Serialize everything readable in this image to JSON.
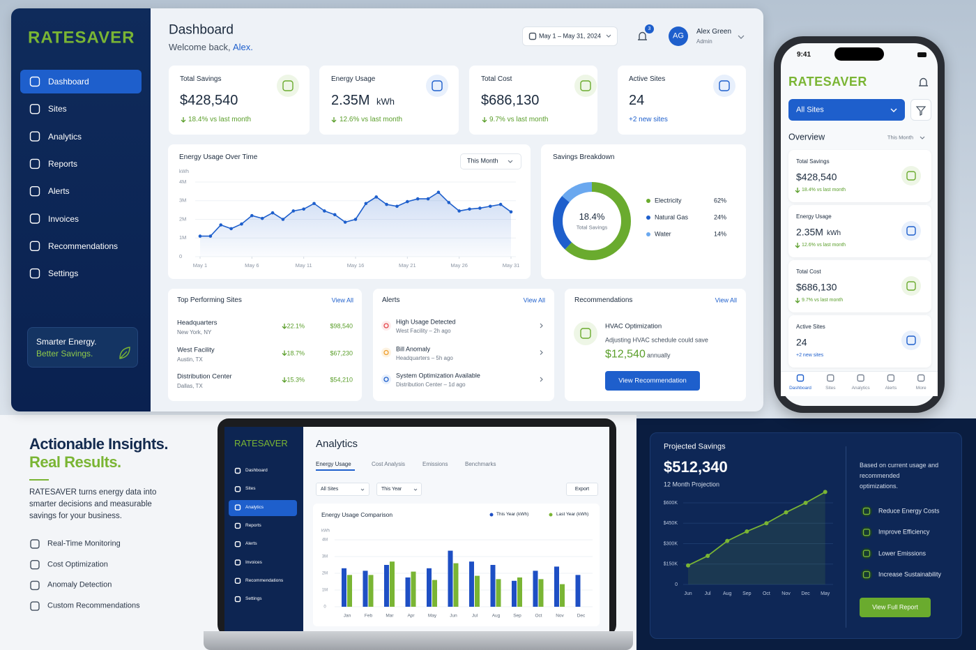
{
  "sidebar": {
    "logo": "RATESAVER",
    "nav": [
      "Dashboard",
      "Sites",
      "Analytics",
      "Reports",
      "Alerts",
      "Invoices",
      "Recommendations",
      "Settings"
    ],
    "tagline": [
      "Smarter Energy.",
      "Better Savings."
    ]
  },
  "header": {
    "title": "Dashboard",
    "welcome": "Welcome back,",
    "user_short": "Alex.",
    "date_range": "May 1 – May 31, 2024",
    "notification_count": "3",
    "avatar": "AG",
    "user_name": "Alex Green",
    "role": "Admin"
  },
  "kpis": [
    {
      "label": "Total Savings",
      "value": "$428,540",
      "change": "18.4% vs last month"
    },
    {
      "label": "Energy Usage",
      "value": "2.35M",
      "unit": "kWh",
      "change": "12.6% vs last month"
    },
    {
      "label": "Total Cost",
      "value": "$686,130",
      "change": "9.7% vs last month"
    },
    {
      "label": "Active Sites",
      "value": "24",
      "change": "+2 new sites"
    }
  ],
  "usage_chart": {
    "type": "line",
    "title": "Energy Usage Over Time",
    "period": "This Month",
    "ylabel": "kWh",
    "color": "#1e5fcc",
    "grid": true,
    "x": [
      1,
      2,
      3,
      4,
      5,
      6,
      7,
      8,
      9,
      10,
      11,
      12,
      13,
      14,
      15,
      16,
      17,
      18,
      19,
      20,
      21,
      22,
      23,
      24,
      25,
      26,
      27,
      28,
      29,
      30,
      31
    ],
    "y": [
      1100000,
      1100000,
      1700000,
      1500000,
      1750000,
      2200000,
      2050000,
      2350000,
      2000000,
      2450000,
      2550000,
      2850000,
      2450000,
      2250000,
      1850000,
      2000000,
      2850000,
      3200000,
      2800000,
      2700000,
      2950000,
      3100000,
      3100000,
      3450000,
      2900000,
      2450000,
      2550000,
      2600000,
      2700000,
      2800000,
      2400000
    ],
    "xlim": [
      1,
      31
    ],
    "xticks": [
      {
        "value": 1,
        "label": "May 1"
      },
      {
        "value": 6,
        "label": "May 6"
      },
      {
        "value": 11,
        "label": "May 11"
      },
      {
        "value": 16,
        "label": "May 16"
      },
      {
        "value": 21,
        "label": "May 21"
      },
      {
        "value": 26,
        "label": "May 26"
      },
      {
        "value": 31,
        "label": "May 31"
      }
    ],
    "ylim": [
      0,
      4000000
    ],
    "yticks": [
      0,
      {
        "value": 1000000,
        "label": "1M"
      },
      {
        "value": 2000000,
        "label": "2M"
      },
      {
        "value": 3000000,
        "label": "3M"
      },
      {
        "value": 4000000,
        "label": "4M"
      }
    ]
  },
  "savings_breakdown": {
    "type": "pie",
    "title": "Savings Breakdown",
    "center_value": "18.4%",
    "center_label": "Total Savings",
    "categories": [
      "Electricity",
      "Natural Gas",
      "Water"
    ],
    "values": [
      62,
      24,
      14
    ],
    "value_labels": [
      "62%",
      "24%",
      "14%"
    ],
    "colors": [
      "#6aab2e",
      "#1e5fcc",
      "#6aa8ef"
    ]
  },
  "top_sites": {
    "title": "Top Performing Sites",
    "link": "View All",
    "rows": [
      {
        "name": "Headquarters",
        "location": "New York, NY",
        "change": "22.1%",
        "amount": "$98,540"
      },
      {
        "name": "West Facility",
        "location": "Austin, TX",
        "change": "18.7%",
        "amount": "$67,230"
      },
      {
        "name": "Distribution Center",
        "location": "Dallas, TX",
        "change": "15.3%",
        "amount": "$54,210"
      }
    ]
  },
  "alerts": {
    "title": "Alerts",
    "link": "View All",
    "items": [
      {
        "title": "High Usage Detected",
        "detail": "West Facility – 2h ago"
      },
      {
        "title": "Bill Anomaly",
        "detail": "Headquarters – 5h ago"
      },
      {
        "title": "System Optimization Available",
        "detail": "Distribution Center – 1d ago"
      }
    ]
  },
  "recommendations": {
    "title": "Recommendations",
    "link": "View All",
    "item_title": "HVAC Optimization",
    "description": "Adjusting HVAC schedule could save",
    "amount": "$12,540",
    "period": "annually",
    "button": "View Recommendation"
  },
  "phone": {
    "time": "9:41",
    "filter": "All Sites",
    "section": "Overview",
    "period": "This Month",
    "tabs": [
      "Dashboard",
      "Sites",
      "Analytics",
      "Alerts",
      "More"
    ]
  },
  "marketing": {
    "headline": "Actionable Insights.",
    "subheadline": "Real Results.",
    "body": "RATESAVER turns energy data into smarter decisions and measurable savings for your business.",
    "features": [
      "Real-Time Monitoring",
      "Cost Optimization",
      "Anomaly Detection",
      "Custom Recommendations"
    ]
  },
  "laptop": {
    "title": "Analytics",
    "tabs": [
      "Energy Usage",
      "Cost Analysis",
      "Emissions",
      "Benchmarks"
    ],
    "site_filter": "All Sites",
    "period_filter": "This Year",
    "export": "Export",
    "chart": {
      "type": "bar",
      "title": "Energy Usage Comparison",
      "ylabel": "kWh",
      "categories": [
        "Jan",
        "Feb",
        "Mar",
        "Apr",
        "May",
        "Jun",
        "Jul",
        "Aug",
        "Sep",
        "Oct",
        "Nov",
        "Dec"
      ],
      "series": [
        {
          "name": "This Year (kWh)",
          "color": "#1e4fc4",
          "values": [
            2300000,
            2150000,
            2500000,
            1750000,
            2300000,
            3350000,
            2700000,
            2500000,
            1550000,
            2150000,
            2400000,
            1900000
          ]
        },
        {
          "name": "Last Year (kWh)",
          "color": "#7ab534",
          "values": [
            1900000,
            1900000,
            2700000,
            2100000,
            1600000,
            2600000,
            1850000,
            1650000,
            1750000,
            1650000,
            1350000,
            null
          ]
        }
      ],
      "ylim": [
        0,
        4000000
      ],
      "yticks": [
        0,
        {
          "value": 1000000,
          "label": "1M"
        },
        {
          "value": 2000000,
          "label": "2M"
        },
        {
          "value": 3000000,
          "label": "3M"
        },
        {
          "value": 4000000,
          "label": "4M"
        }
      ]
    }
  },
  "projection": {
    "title": "Projected Savings",
    "value": "$512,340",
    "subtitle": "12 Month Projection",
    "chart": {
      "type": "line",
      "color": "#7ab534",
      "categories": [
        "Jun",
        "Jul",
        "Aug",
        "Sep",
        "Oct",
        "Nov",
        "Dec",
        "May"
      ],
      "values": [
        140000,
        210000,
        320000,
        390000,
        450000,
        530000,
        600000,
        680000
      ],
      "ylim": [
        0,
        700000
      ],
      "yticks": [
        0,
        {
          "value": 150000,
          "label": "$150K"
        },
        {
          "value": 300000,
          "label": "$300K"
        },
        {
          "value": 450000,
          "label": "$450K"
        },
        {
          "value": 600000,
          "label": "$600K"
        }
      ]
    },
    "note": "Based on current usage and recommended optimizations.",
    "benefits": [
      "Reduce Energy Costs",
      "Improve Efficiency",
      "Lower Emissions",
      "Increase Sustainability"
    ],
    "button": "View Full Report"
  }
}
